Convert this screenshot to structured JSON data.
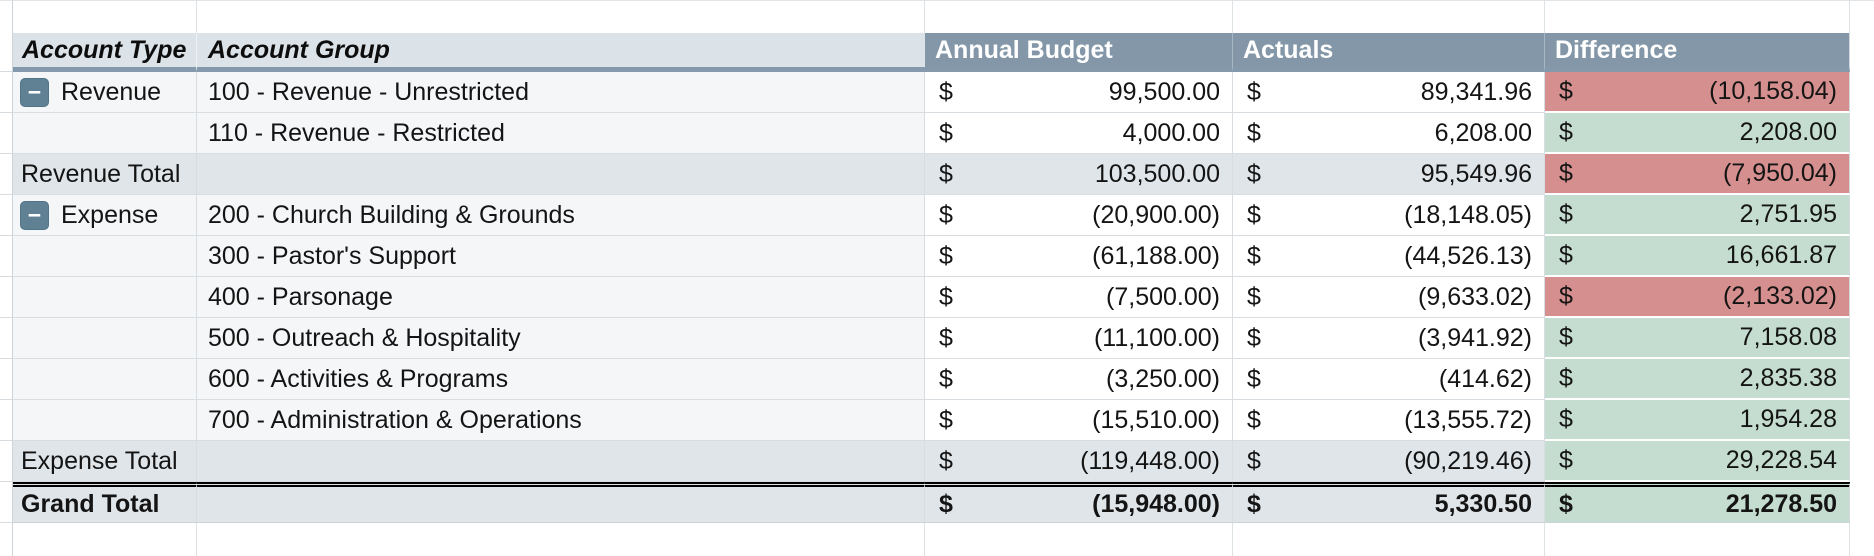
{
  "currency": "$",
  "collapse_icon": "−",
  "header": {
    "account_type": "Account Type",
    "account_group": "Account Group",
    "annual_budget": "Annual Budget",
    "actuals": "Actuals",
    "difference": "Difference"
  },
  "colors": {
    "header_dark_bg": "#8397a8",
    "header_light_bg": "#dce3e8",
    "total_row_bg": "#dfe5e9",
    "data_row_bg": "#f4f6f7",
    "negative_bg": "#d58f8e",
    "positive_bg": "#c5ddd0",
    "collapse_button_bg": "#5f8193"
  },
  "rows": [
    {
      "account_type": "Revenue",
      "account_group": "100 - Revenue - Unrestricted",
      "budget": "99,500.00",
      "actuals": "89,341.96",
      "difference": "(10,158.04)",
      "difference_state": "negative"
    },
    {
      "account_type": "",
      "account_group": "110 - Revenue - Restricted",
      "budget": "4,000.00",
      "actuals": "6,208.00",
      "difference": "2,208.00",
      "difference_state": "positive"
    },
    {
      "account_type": "Revenue Total",
      "account_group": "",
      "budget": "103,500.00",
      "actuals": "95,549.96",
      "difference": "(7,950.04)",
      "difference_state": "negative"
    },
    {
      "account_type": "Expense",
      "account_group": "200 - Church Building & Grounds",
      "budget": "(20,900.00)",
      "actuals": "(18,148.05)",
      "difference": "2,751.95",
      "difference_state": "positive"
    },
    {
      "account_type": "",
      "account_group": "300 - Pastor's Support",
      "budget": "(61,188.00)",
      "actuals": "(44,526.13)",
      "difference": "16,661.87",
      "difference_state": "positive"
    },
    {
      "account_type": "",
      "account_group": "400 - Parsonage",
      "budget": "(7,500.00)",
      "actuals": "(9,633.02)",
      "difference": "(2,133.02)",
      "difference_state": "negative"
    },
    {
      "account_type": "",
      "account_group": "500 - Outreach & Hospitality",
      "budget": "(11,100.00)",
      "actuals": "(3,941.92)",
      "difference": "7,158.08",
      "difference_state": "positive"
    },
    {
      "account_type": "",
      "account_group": "600 - Activities & Programs",
      "budget": "(3,250.00)",
      "actuals": "(414.62)",
      "difference": "2,835.38",
      "difference_state": "positive"
    },
    {
      "account_type": "",
      "account_group": "700 - Administration & Operations",
      "budget": "(15,510.00)",
      "actuals": "(13,555.72)",
      "difference": "1,954.28",
      "difference_state": "positive"
    },
    {
      "account_type": "Expense Total",
      "account_group": "",
      "budget": "(119,448.00)",
      "actuals": "(90,219.46)",
      "difference": "29,228.54",
      "difference_state": "positive"
    },
    {
      "account_type": "Grand Total",
      "account_group": "",
      "budget": "(15,948.00)",
      "actuals": "5,330.50",
      "difference": "21,278.50",
      "difference_state": "positive"
    }
  ]
}
